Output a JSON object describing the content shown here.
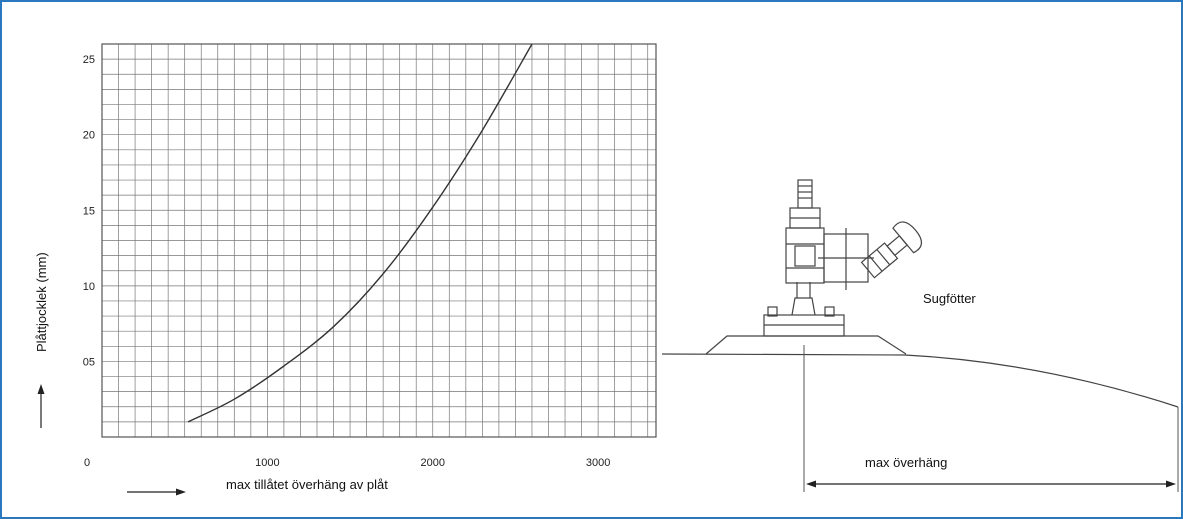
{
  "chart_data": {
    "type": "line",
    "x_ticks": [
      "0",
      "1000",
      "2000",
      "3000"
    ],
    "y_ticks": [
      "05",
      "10",
      "15",
      "20",
      "25"
    ],
    "xlabel": "max tillåtet överhäng av plåt",
    "ylabel": "Plåttjocklek (mm)",
    "xlim": [
      0,
      3350
    ],
    "ylim": [
      0,
      26
    ],
    "grid": true,
    "series": [
      {
        "x": [
          520,
          800,
          1100,
          1400,
          1700,
          2000,
          2300,
          2600
        ],
        "y": [
          1,
          2.5,
          4.7,
          7.3,
          10.8,
          15.2,
          20.3,
          26
        ]
      }
    ],
    "colors": {
      "line": "#333333",
      "grid": "#777777",
      "border": "#2a79be"
    }
  },
  "diagram": {
    "label_suction": "Sugfötter",
    "label_overhang": "max överhäng"
  }
}
